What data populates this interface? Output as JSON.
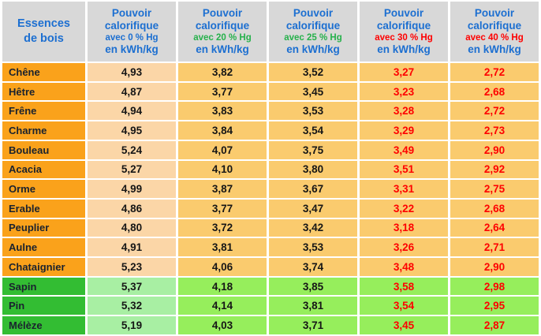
{
  "table": {
    "corner_label": "Essences de bois",
    "header_line1": "Pouvoir",
    "header_line2": "calorifique",
    "unit_label": "en kWh/kg",
    "columns": [
      {
        "condition": "avec 0 % Hg",
        "condition_color": "#1C6FD1"
      },
      {
        "condition": "avec 20 % Hg",
        "condition_color": "#26B14B"
      },
      {
        "condition": "avec 25 % Hg",
        "condition_color": "#26B14B"
      },
      {
        "condition": "avec 30 % Hg",
        "condition_color": "#FE0000"
      },
      {
        "condition": "avec 40 % Hg",
        "condition_color": "#FE0000"
      }
    ],
    "value_colors": [
      "#161616",
      "#161616",
      "#161616",
      "#FE0000",
      "#FE0000"
    ],
    "rows": [
      {
        "species": "Chêne",
        "group": "hardwood",
        "values": [
          "4,93",
          "3,82",
          "3,52",
          "3,27",
          "2,72"
        ]
      },
      {
        "species": "Hêtre",
        "group": "hardwood",
        "values": [
          "4,87",
          "3,77",
          "3,45",
          "3,23",
          "2,68"
        ]
      },
      {
        "species": "Frêne",
        "group": "hardwood",
        "values": [
          "4,94",
          "3,83",
          "3,53",
          "3,28",
          "2,72"
        ]
      },
      {
        "species": "Charme",
        "group": "hardwood",
        "values": [
          "4,95",
          "3,84",
          "3,54",
          "3,29",
          "2,73"
        ]
      },
      {
        "species": "Bouleau",
        "group": "hardwood",
        "values": [
          "5,24",
          "4,07",
          "3,75",
          "3,49",
          "2,90"
        ]
      },
      {
        "species": "Acacia",
        "group": "hardwood",
        "values": [
          "5,27",
          "4,10",
          "3,80",
          "3,51",
          "2,92"
        ]
      },
      {
        "species": "Orme",
        "group": "hardwood",
        "values": [
          "4,99",
          "3,87",
          "3,67",
          "3,31",
          "2,75"
        ]
      },
      {
        "species": "Erable",
        "group": "hardwood",
        "values": [
          "4,86",
          "3,77",
          "3,47",
          "3,22",
          "2,68"
        ]
      },
      {
        "species": "Peuplier",
        "group": "hardwood",
        "values": [
          "4,80",
          "3,72",
          "3,42",
          "3,18",
          "2,64"
        ]
      },
      {
        "species": "Aulne",
        "group": "hardwood",
        "values": [
          "4,91",
          "3,81",
          "3,53",
          "3,26",
          "2,71"
        ]
      },
      {
        "species": "Chataignier",
        "group": "hardwood",
        "values": [
          "5,23",
          "4,06",
          "3,74",
          "3,48",
          "2,90"
        ]
      },
      {
        "species": "Sapin",
        "group": "softwood",
        "values": [
          "5,37",
          "4,18",
          "3,85",
          "3,58",
          "2,98"
        ]
      },
      {
        "species": "Pin",
        "group": "softwood",
        "values": [
          "5,32",
          "4,14",
          "3,81",
          "3,54",
          "2,95"
        ]
      },
      {
        "species": "Mélèze",
        "group": "softwood",
        "values": [
          "5,19",
          "4,03",
          "3,71",
          "3,45",
          "2,87"
        ]
      }
    ]
  },
  "colors": {
    "header_bg": "#D8D8D8",
    "header_text_blue": "#1C6FD1",
    "species_text": "#1A222E",
    "hardwood_name_bg": "#FAA21B",
    "hardwood_first_col_bg": "#FBD6A7",
    "hardwood_data_bg": "#FACB6E",
    "softwood_name_bg": "#33BD33",
    "softwood_first_col_bg": "#A8EFA3",
    "softwood_data_bg": "#96EE5C"
  },
  "chart_data": {
    "type": "table",
    "title": "Pouvoir calorifique des essences de bois (kWh/kg) selon le taux d'humidité (Hg)",
    "columns": [
      "Essences de bois",
      "Pouvoir calorifique avec 0 % Hg en kWh/kg",
      "Pouvoir calorifique avec 20 % Hg en kWh/kg",
      "Pouvoir calorifique avec 25 % Hg en kWh/kg",
      "Pouvoir calorifique avec 30 % Hg en kWh/kg",
      "Pouvoir calorifique avec 40 % Hg en kWh/kg"
    ],
    "rows": [
      [
        "Chêne",
        4.93,
        3.82,
        3.52,
        3.27,
        2.72
      ],
      [
        "Hêtre",
        4.87,
        3.77,
        3.45,
        3.23,
        2.68
      ],
      [
        "Frêne",
        4.94,
        3.83,
        3.53,
        3.28,
        2.72
      ],
      [
        "Charme",
        4.95,
        3.84,
        3.54,
        3.29,
        2.73
      ],
      [
        "Bouleau",
        5.24,
        4.07,
        3.75,
        3.49,
        2.9
      ],
      [
        "Acacia",
        5.27,
        4.1,
        3.8,
        3.51,
        2.92
      ],
      [
        "Orme",
        4.99,
        3.87,
        3.67,
        3.31,
        2.75
      ],
      [
        "Erable",
        4.86,
        3.77,
        3.47,
        3.22,
        2.68
      ],
      [
        "Peuplier",
        4.8,
        3.72,
        3.42,
        3.18,
        2.64
      ],
      [
        "Aulne",
        4.91,
        3.81,
        3.53,
        3.26,
        2.71
      ],
      [
        "Chataignier",
        5.23,
        4.06,
        3.74,
        3.48,
        2.9
      ],
      [
        "Sapin",
        5.37,
        4.18,
        3.85,
        3.58,
        2.98
      ],
      [
        "Pin",
        5.32,
        4.14,
        3.81,
        3.54,
        2.95
      ],
      [
        "Mélèze",
        5.19,
        4.03,
        3.71,
        3.45,
        2.87
      ]
    ]
  }
}
